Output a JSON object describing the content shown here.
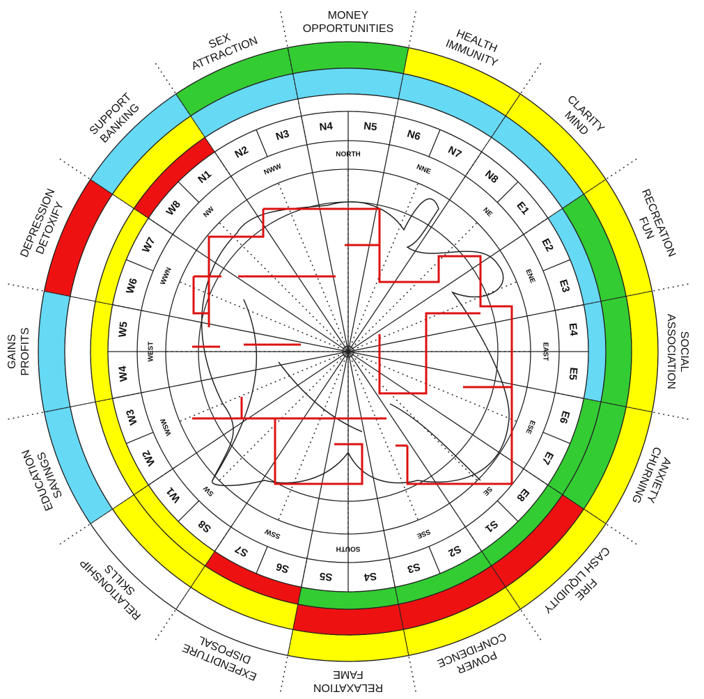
{
  "zones": [
    {
      "lines": [
        "MONEY",
        "OPPORTUNITIES"
      ],
      "rings": [
        "#33cc33",
        "#66d9f5",
        "#ffffff"
      ]
    },
    {
      "lines": [
        "HEALTH",
        "IMMUNITY"
      ],
      "rings": [
        "#ffff00",
        "#66d9f5",
        "#ffffff"
      ]
    },
    {
      "lines": [
        "CLARITY",
        "MIND"
      ],
      "rings": [
        "#ffff00",
        "#66d9f5",
        "#ffffff"
      ]
    },
    {
      "lines": [
        "RECREATION",
        "FUN"
      ],
      "rings": [
        "#ffff00",
        "#33cc33",
        "#66d9f5"
      ]
    },
    {
      "lines": [
        "SOCIAL",
        "ASSOCIATION"
      ],
      "rings": [
        "#ffff00",
        "#33cc33",
        "#66d9f5"
      ]
    },
    {
      "lines": [
        "ANXIETY",
        "CHURNING"
      ],
      "rings": [
        "#ffff00",
        "#33cc33",
        "#33cc33"
      ]
    },
    {
      "lines": [
        "FIRE",
        "CASH LIQUIDITY"
      ],
      "rings": [
        "#ffff00",
        "#ee1111",
        "#33cc33"
      ]
    },
    {
      "lines": [
        "POWER",
        "CONFIDENCE"
      ],
      "rings": [
        "#ffff00",
        "#ee1111",
        "#33cc33"
      ]
    },
    {
      "lines": [
        "RELAXATION",
        "FAME"
      ],
      "rings": [
        "#ffff00",
        "#ee1111",
        "#33cc33"
      ]
    },
    {
      "lines": [
        "EXPENDITURE",
        "DISPOSAL"
      ],
      "rings": [
        "#ffffff",
        "#ffff00",
        "#ee1111"
      ]
    },
    {
      "lines": [
        "RELATIONSHIP",
        "SKILLS"
      ],
      "rings": [
        "#ffffff",
        "#ffff00",
        "#ffff00"
      ]
    },
    {
      "lines": [
        "EDUCATION",
        "SAVINGS"
      ],
      "rings": [
        "#66d9f5",
        "#ffffff",
        "#ffff00"
      ]
    },
    {
      "lines": [
        "GAINS",
        "PROFITS"
      ],
      "rings": [
        "#66d9f5",
        "#ffffff",
        "#ffff00"
      ]
    },
    {
      "lines": [
        "DEPRESSION",
        "DETOXIFY"
      ],
      "rings": [
        "#ee1111",
        "#ffffff",
        "#ffff00"
      ]
    },
    {
      "lines": [
        "SUPPORT",
        "BANKING"
      ],
      "rings": [
        "#66d9f5",
        "#ffff00",
        "#ee1111"
      ]
    },
    {
      "lines": [
        "SEX",
        "ATTRACTION"
      ],
      "rings": [
        "#33cc33",
        "#66d9f5",
        "#ffffff"
      ]
    }
  ],
  "padas": [
    "N1",
    "N2",
    "N3",
    "N4",
    "N5",
    "N6",
    "N7",
    "N8",
    "E1",
    "E2",
    "E3",
    "E4",
    "E5",
    "E6",
    "E7",
    "E8",
    "S1",
    "S2",
    "S3",
    "S4",
    "S5",
    "S6",
    "S7",
    "S8",
    "W1",
    "W2",
    "W3",
    "W4",
    "W5",
    "W6",
    "W7",
    "W8"
  ],
  "directions": [
    "NORTH",
    "NNE",
    "NE",
    "ENE",
    "EAST",
    "ESE",
    "SE",
    "SSE",
    "SOUTH",
    "SSW",
    "SW",
    "WSW",
    "WEST",
    "WWN",
    "NW",
    "NWW"
  ]
}
